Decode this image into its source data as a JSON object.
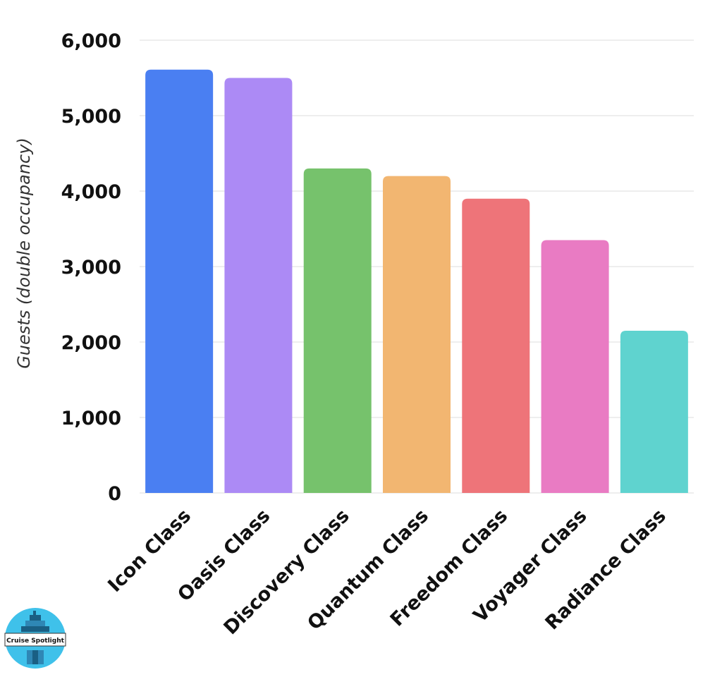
{
  "chart_data": {
    "type": "bar",
    "title": "",
    "xlabel": "",
    "ylabel": "Guests (double occupancy)",
    "ylim": [
      0,
      6000
    ],
    "yticks": [
      0,
      1000,
      2000,
      3000,
      4000,
      5000,
      6000
    ],
    "ytick_labels": [
      "0",
      "1,000",
      "2,000",
      "3,000",
      "4,000",
      "5,000",
      "6,000"
    ],
    "grid": true,
    "legend": "none",
    "categories": [
      "Icon Class",
      "Oasis Class",
      "Discovery Class",
      "Quantum Class",
      "Freedom Class",
      "Voyager Class",
      "Radiance Class"
    ],
    "values": [
      5610,
      5500,
      4300,
      4200,
      3900,
      3350,
      2150
    ],
    "colors": [
      "#4a7ff2",
      "#ac8af5",
      "#76c26c",
      "#f2b671",
      "#ee7479",
      "#e97bc3",
      "#5fd3cf"
    ]
  },
  "logo": {
    "text": "Cruise Spotlight",
    "icon": "cruise-ship-icon",
    "color": "#3fc1ea"
  }
}
